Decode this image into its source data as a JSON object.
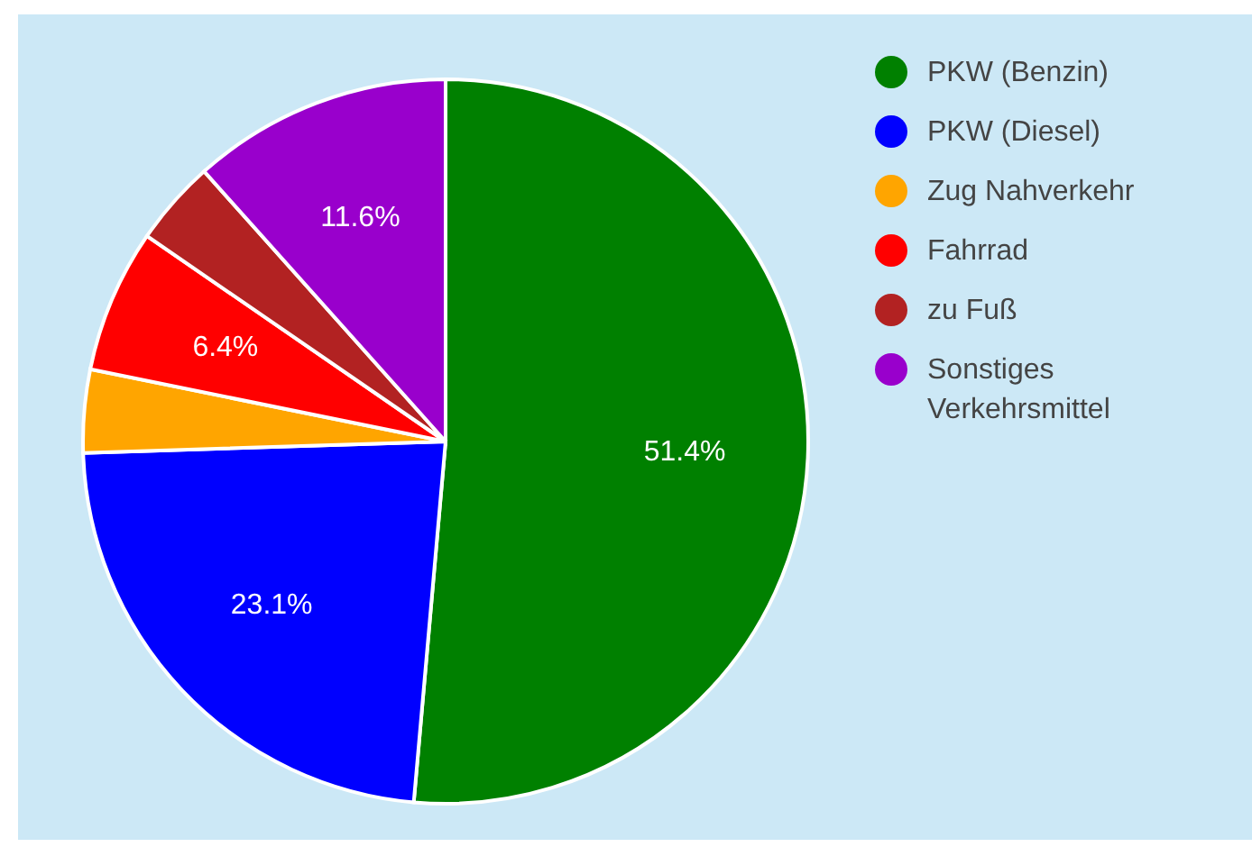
{
  "chart_data": {
    "type": "pie",
    "categories": [
      "PKW (Benzin)",
      "PKW (Diesel)",
      "Zug Nahverkehr",
      "Fahrrad",
      "zu Fuß",
      "Sonstiges Verkehrsmittel"
    ],
    "values": [
      51.4,
      23.1,
      3.7,
      6.4,
      3.8,
      11.6
    ],
    "colors": [
      "#008000",
      "#0000ff",
      "#ffa500",
      "#ff0000",
      "#b22222",
      "#9900cc"
    ],
    "value_labels": [
      "51.4%",
      "23.1%",
      null,
      "6.4%",
      null,
      "11.6%"
    ],
    "legend": "top right"
  }
}
